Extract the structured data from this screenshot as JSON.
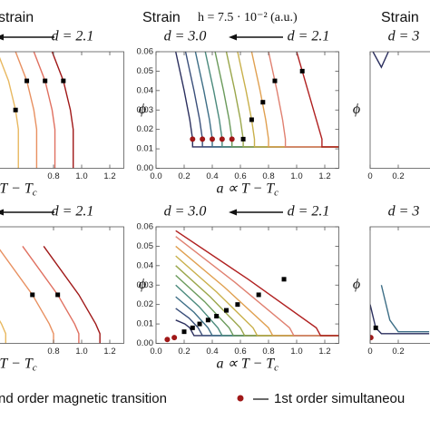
{
  "chart_data": [
    {
      "type": "line",
      "title": "strain",
      "annotations": [
        "d = 2.1"
      ],
      "xlim": [
        0,
        1.3
      ],
      "ylim": [
        0,
        0.06
      ],
      "xticks": [
        0.8,
        {
          "value": 1,
          "label": "1.0"
        },
        1.2
      ],
      "xlabel": {
        "main": "T − T",
        "sub": "c"
      },
      "series": [
        {
          "style": "line",
          "color": "#e8b860",
          "x": [
            0.4,
            0.48,
            0.53,
            0.55,
            0.55
          ],
          "values": [
            0.06,
            0.045,
            0.03,
            0.02,
            0
          ]
        },
        {
          "style": "line",
          "color": "#e89060",
          "x": [
            0.53,
            0.61,
            0.66,
            0.68,
            0.68
          ],
          "values": [
            0.06,
            0.045,
            0.03,
            0.02,
            0
          ]
        },
        {
          "style": "line",
          "color": "#e07060",
          "x": [
            0.66,
            0.74,
            0.79,
            0.81,
            0.81
          ],
          "values": [
            0.06,
            0.045,
            0.03,
            0.02,
            0
          ]
        },
        {
          "style": "line",
          "color": "#a01818",
          "x": [
            0.79,
            0.87,
            0.92,
            0.94,
            0.94
          ],
          "values": [
            0.06,
            0.045,
            0.03,
            0.02,
            0
          ]
        },
        {
          "style": "square",
          "color": "#000000",
          "x": [
            0.53,
            0.61,
            0.74,
            0.87
          ],
          "values": [
            0.03,
            0.045,
            0.045,
            0.045
          ]
        }
      ]
    },
    {
      "type": "line",
      "title": "Strain",
      "subtitle": "h = 7.5 · 10⁻² (a.u.)",
      "annotations": [
        "d = 3.0",
        "d = 2.1"
      ],
      "xlim": [
        0,
        1.3
      ],
      "ylim": [
        0,
        0.06
      ],
      "xticks": [
        {
          "value": 0,
          "label": "0.0"
        },
        0.2,
        0.4,
        0.6,
        0.8,
        {
          "value": 1,
          "label": "1.0"
        },
        1.2
      ],
      "yticks": [
        {
          "value": 0,
          "label": "0.00"
        },
        {
          "value": 0.01,
          "label": "0.01"
        },
        {
          "value": 0.02,
          "label": "0.02"
        },
        {
          "value": 0.03,
          "label": "0.03"
        },
        {
          "value": 0.04,
          "label": "0.04"
        },
        {
          "value": 0.05,
          "label": "0.05"
        },
        {
          "value": 0.06,
          "label": "0.06"
        }
      ],
      "xlabel": {
        "main": "a ∝ T − T",
        "sub": "c"
      },
      "ylabel": "ϕ",
      "series": [
        {
          "style": "line",
          "color": "#2b2f5e",
          "x": [
            0.14,
            0.2,
            0.24,
            0.26,
            0.26,
            1.3
          ],
          "values": [
            0.06,
            0.04,
            0.025,
            0.015,
            0.011,
            0.011
          ]
        },
        {
          "style": "line",
          "color": "#3a4f7a",
          "x": [
            0.21,
            0.27,
            0.31,
            0.33,
            0.33,
            1.3
          ],
          "values": [
            0.06,
            0.04,
            0.025,
            0.015,
            0.011,
            0.011
          ]
        },
        {
          "style": "line",
          "color": "#3d6e86",
          "x": [
            0.28,
            0.34,
            0.38,
            0.4,
            0.4,
            1.3
          ],
          "values": [
            0.06,
            0.04,
            0.025,
            0.015,
            0.011,
            0.011
          ]
        },
        {
          "style": "line",
          "color": "#4a8a7c",
          "x": [
            0.35,
            0.41,
            0.45,
            0.47,
            0.47,
            1.3
          ],
          "values": [
            0.06,
            0.04,
            0.025,
            0.015,
            0.011,
            0.011
          ]
        },
        {
          "style": "line",
          "color": "#6a9a5a",
          "x": [
            0.42,
            0.48,
            0.52,
            0.54,
            0.54,
            1.3
          ],
          "values": [
            0.06,
            0.04,
            0.025,
            0.015,
            0.011,
            0.011
          ]
        },
        {
          "style": "line",
          "color": "#9aa64a",
          "x": [
            0.5,
            0.56,
            0.6,
            0.62,
            0.62,
            1.3
          ],
          "values": [
            0.06,
            0.04,
            0.025,
            0.015,
            0.011,
            0.011
          ]
        },
        {
          "style": "line",
          "color": "#c9b04a",
          "x": [
            0.58,
            0.64,
            0.68,
            0.7,
            0.7,
            1.3
          ],
          "values": [
            0.06,
            0.04,
            0.025,
            0.015,
            0.011,
            0.011
          ]
        },
        {
          "style": "line",
          "color": "#e0a050",
          "x": [
            0.68,
            0.74,
            0.78,
            0.8,
            0.8,
            1.3
          ],
          "values": [
            0.06,
            0.04,
            0.025,
            0.015,
            0.011,
            0.011
          ]
        },
        {
          "style": "line",
          "color": "#e08070",
          "x": [
            0.8,
            0.86,
            0.9,
            0.92,
            0.92,
            1.3
          ],
          "values": [
            0.06,
            0.04,
            0.025,
            0.015,
            0.011,
            0.011
          ]
        },
        {
          "style": "line",
          "color": "#b02020",
          "x": [
            1.0,
            1.08,
            1.14,
            1.18,
            1.18,
            1.3
          ],
          "values": [
            0.06,
            0.04,
            0.025,
            0.015,
            0.011,
            0.011
          ]
        },
        {
          "style": "dot",
          "color": "#a01818",
          "x": [
            0.26,
            0.33,
            0.4,
            0.47,
            0.54
          ],
          "values": [
            0.015,
            0.015,
            0.015,
            0.015,
            0.015
          ]
        },
        {
          "style": "square",
          "color": "#000000",
          "x": [
            0.62,
            0.68,
            0.76,
            0.845,
            1.04
          ],
          "values": [
            0.015,
            0.025,
            0.034,
            0.045,
            0.05
          ]
        }
      ]
    },
    {
      "type": "line",
      "title": "Strain",
      "annotations": [
        "d = 3"
      ],
      "xlim": [
        0,
        1.3
      ],
      "ylim": [
        0,
        0.06
      ],
      "xticks": [
        0,
        0.2
      ],
      "ylabel": "ϕ",
      "series": [
        {
          "style": "line",
          "color": "#2b2f5e",
          "x": [
            0.02,
            0.08,
            0.13
          ],
          "values": [
            0.06,
            0.052,
            0.06
          ]
        }
      ]
    },
    {
      "type": "line",
      "annotations": [
        "d = 2.1"
      ],
      "xlim": [
        0,
        1.3
      ],
      "ylim": [
        0,
        0.06
      ],
      "xticks": [
        0.8,
        {
          "value": 1,
          "label": "1.0"
        },
        1.2
      ],
      "xlabel": {
        "main": "T − T",
        "sub": "c"
      },
      "series": [
        {
          "style": "line",
          "color": "#e8b860",
          "x": [
            0.06,
            0.31,
            0.43,
            0.46,
            0.46
          ],
          "values": [
            0.05,
            0.025,
            0.01,
            0.005,
            0
          ]
        },
        {
          "style": "line",
          "color": "#e89060",
          "x": [
            0.4,
            0.65,
            0.77,
            0.8,
            0.8
          ],
          "values": [
            0.05,
            0.025,
            0.01,
            0.005,
            0
          ]
        },
        {
          "style": "line",
          "color": "#e07060",
          "x": [
            0.58,
            0.83,
            0.95,
            0.98,
            0.98
          ],
          "values": [
            0.05,
            0.025,
            0.01,
            0.005,
            0
          ]
        },
        {
          "style": "line",
          "color": "#a01818",
          "x": [
            0.73,
            0.98,
            1.1,
            1.13,
            1.13
          ],
          "values": [
            0.05,
            0.025,
            0.01,
            0.005,
            0
          ]
        },
        {
          "style": "square",
          "color": "#000000",
          "x": [
            0.65,
            0.83
          ],
          "values": [
            0.025,
            0.025
          ]
        }
      ]
    },
    {
      "type": "line",
      "annotations": [
        "d = 3.0",
        "d = 2.1"
      ],
      "xlim": [
        0,
        1.3
      ],
      "ylim": [
        0,
        0.06
      ],
      "xticks": [
        {
          "value": 0,
          "label": "0.0"
        },
        0.2,
        0.4,
        0.6,
        0.8,
        {
          "value": 1,
          "label": "1.0"
        },
        1.2
      ],
      "yticks": [
        {
          "value": 0,
          "label": "0.00"
        },
        {
          "value": 0.01,
          "label": "0.01"
        },
        {
          "value": 0.02,
          "label": "0.02"
        },
        {
          "value": 0.03,
          "label": "0.03"
        },
        {
          "value": 0.04,
          "label": "0.04"
        },
        {
          "value": 0.05,
          "label": "0.05"
        },
        {
          "value": 0.06,
          "label": "0.06"
        }
      ],
      "xlabel": {
        "main": "a ∝ T − T",
        "sub": "c"
      },
      "ylabel": "ϕ",
      "series": [
        {
          "style": "line",
          "color": "#2b2f5e",
          "x": [
            0.14,
            0.205,
            0.24,
            0.27,
            1.3
          ],
          "values": [
            0.012,
            0.01,
            0.008,
            0.004,
            0.004
          ]
        },
        {
          "style": "line",
          "color": "#3a4f7a",
          "x": [
            0.14,
            0.235,
            0.3,
            0.33,
            1.3
          ],
          "values": [
            0.018,
            0.013,
            0.008,
            0.004,
            0.004
          ]
        },
        {
          "style": "line",
          "color": "#3d6e86",
          "x": [
            0.14,
            0.27,
            0.37,
            0.4,
            1.3
          ],
          "values": [
            0.024,
            0.016,
            0.008,
            0.004,
            0.004
          ]
        },
        {
          "style": "line",
          "color": "#4a8a7c",
          "x": [
            0.14,
            0.305,
            0.44,
            0.47,
            1.3
          ],
          "values": [
            0.03,
            0.019,
            0.008,
            0.004,
            0.004
          ]
        },
        {
          "style": "line",
          "color": "#6a9a5a",
          "x": [
            0.14,
            0.345,
            0.52,
            0.55,
            1.3
          ],
          "values": [
            0.035,
            0.0215,
            0.008,
            0.004,
            0.004
          ]
        },
        {
          "style": "line",
          "color": "#9aa64a",
          "x": [
            0.14,
            0.385,
            0.6,
            0.63,
            1.3
          ],
          "values": [
            0.04,
            0.024,
            0.008,
            0.004,
            0.004
          ]
        },
        {
          "style": "line",
          "color": "#c9b04a",
          "x": [
            0.14,
            0.43,
            0.69,
            0.72,
            1.3
          ],
          "values": [
            0.045,
            0.0265,
            0.008,
            0.004,
            0.004
          ]
        },
        {
          "style": "line",
          "color": "#e0a050",
          "x": [
            0.14,
            0.485,
            0.8,
            0.83,
            1.3
          ],
          "values": [
            0.05,
            0.029,
            0.008,
            0.004,
            0.004
          ]
        },
        {
          "style": "line",
          "color": "#e08070",
          "x": [
            0.14,
            0.56,
            0.95,
            0.98,
            1.3
          ],
          "values": [
            0.055,
            0.0315,
            0.008,
            0.004,
            0.004
          ]
        },
        {
          "style": "line",
          "color": "#b02020",
          "x": [
            0.14,
            0.655,
            1.14,
            1.17,
            1.3
          ],
          "values": [
            0.058,
            0.033,
            0.008,
            0.004,
            0.004
          ]
        },
        {
          "style": "dot",
          "color": "#a01818",
          "x": [
            0.08,
            0.13
          ],
          "values": [
            0.002,
            0.003
          ]
        },
        {
          "style": "square",
          "color": "#000000",
          "x": [
            0.2,
            0.26,
            0.31,
            0.37,
            0.43,
            0.5,
            0.58,
            0.73,
            0.91
          ],
          "values": [
            0.006,
            0.008,
            0.01,
            0.012,
            0.014,
            0.017,
            0.02,
            0.025,
            0.033
          ]
        }
      ]
    },
    {
      "type": "line",
      "annotations": [
        "d = 3"
      ],
      "xlim": [
        0,
        1.3
      ],
      "ylim": [
        0,
        0.06
      ],
      "xticks": [
        0,
        0.2
      ],
      "ylabel": "ϕ",
      "series": [
        {
          "style": "line",
          "color": "#2b2f5e",
          "x": [
            0.0,
            0.04,
            0.08,
            0.42
          ],
          "values": [
            0.02,
            0.008,
            0.005,
            0.005
          ]
        },
        {
          "style": "line",
          "color": "#3d6e86",
          "x": [
            0.08,
            0.14,
            0.2,
            0.42
          ],
          "values": [
            0.03,
            0.012,
            0.006,
            0.006
          ]
        },
        {
          "style": "dot",
          "color": "#a01818",
          "x": [
            0.005
          ],
          "values": [
            0.003
          ]
        },
        {
          "style": "square",
          "color": "#000000",
          "x": [
            0.04
          ],
          "values": [
            0.008
          ]
        }
      ]
    }
  ],
  "legend": {
    "items": [
      "nd order magnetic transition",
      "1st order simultaneou"
    ]
  }
}
